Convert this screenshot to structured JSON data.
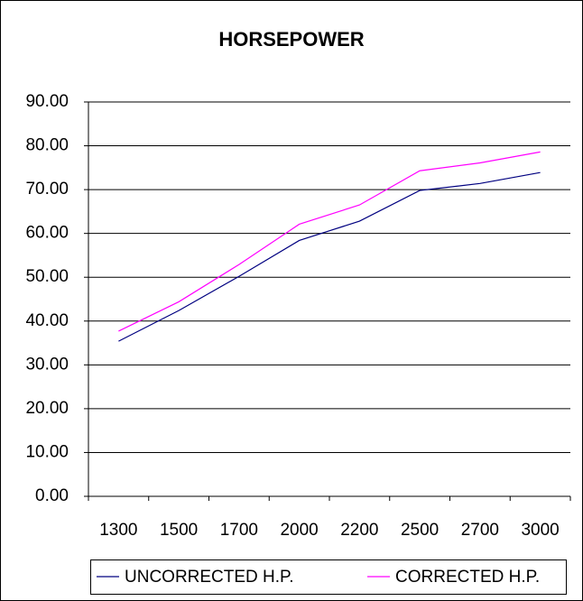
{
  "chart_data": {
    "type": "line",
    "title": "HORSEPOWER",
    "categories": [
      "1300",
      "1500",
      "1700",
      "2000",
      "2200",
      "2500",
      "2700",
      "3000"
    ],
    "series": [
      {
        "name": "UNCORRECTED H.P.",
        "color": "#000080",
        "values": [
          35.4,
          42.4,
          50.2,
          58.4,
          62.8,
          69.8,
          71.4,
          73.9
        ]
      },
      {
        "name": "CORRECTED H.P.",
        "color": "#ff00ff",
        "values": [
          37.7,
          44.4,
          52.9,
          62.1,
          66.5,
          74.3,
          76.1,
          78.6
        ]
      }
    ],
    "ylim": [
      0,
      90
    ],
    "yticks": [
      {
        "value": 0,
        "label": "0.00"
      },
      {
        "value": 10,
        "label": "10.00"
      },
      {
        "value": 20,
        "label": "20.00"
      },
      {
        "value": 30,
        "label": "30.00"
      },
      {
        "value": 40,
        "label": "40.00"
      },
      {
        "value": 50,
        "label": "50.00"
      },
      {
        "value": 60,
        "label": "60.00"
      },
      {
        "value": 70,
        "label": "70.00"
      },
      {
        "value": 80,
        "label": "80.00"
      },
      {
        "value": 90,
        "label": "90.00"
      }
    ],
    "grid": true,
    "legend": "bottom"
  }
}
